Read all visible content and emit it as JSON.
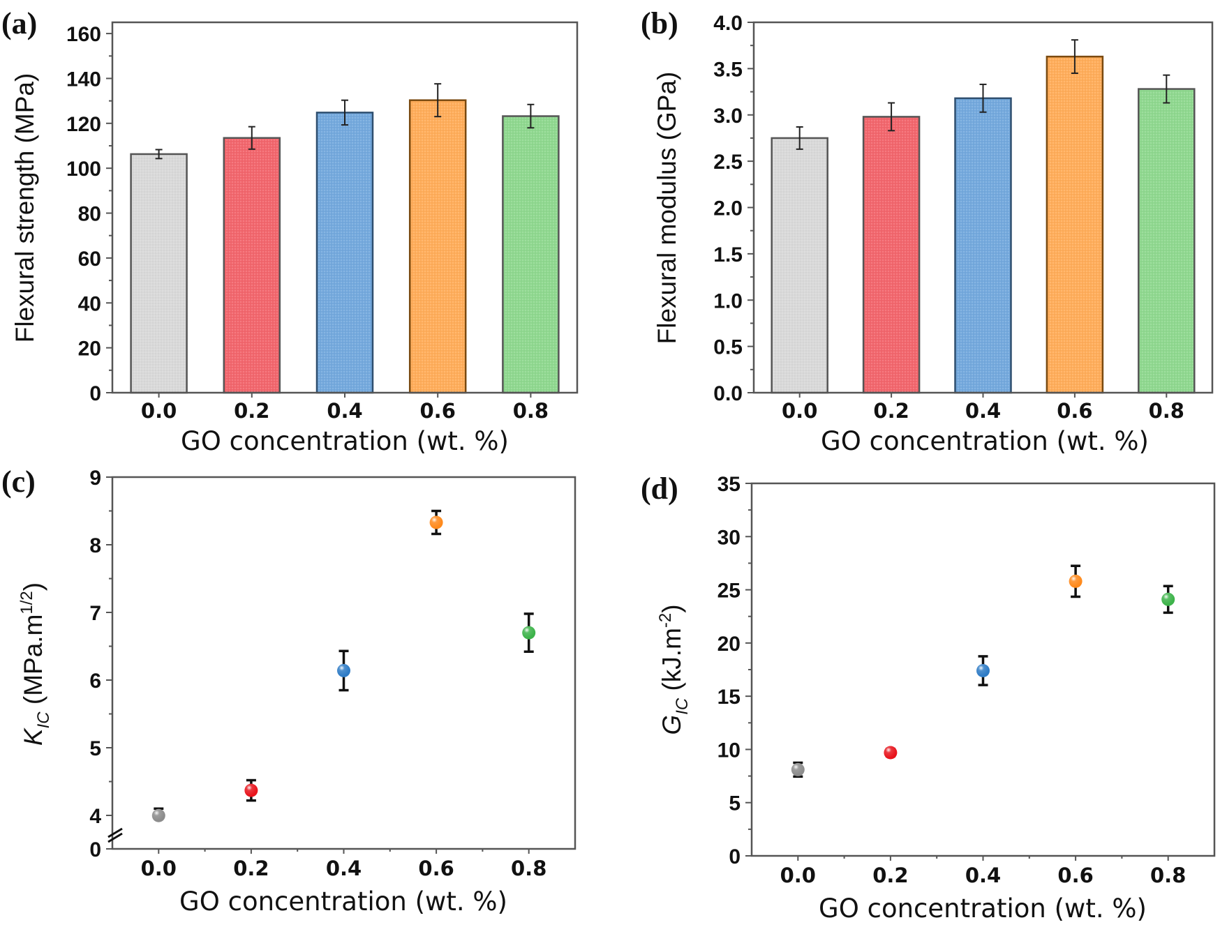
{
  "figure": {
    "panels": [
      "(a)",
      "(b)",
      "(c)",
      "(d)"
    ]
  },
  "chart_data": [
    {
      "id": "a",
      "panel_label": "(a)",
      "type": "bar",
      "title": "",
      "xlabel": "GO concentration (wt. %)",
      "ylabel": "Flexural strength (MPa)",
      "categories": [
        "0.0",
        "0.2",
        "0.4",
        "0.6",
        "0.8"
      ],
      "x": [
        0.0,
        0.2,
        0.4,
        0.6,
        0.8
      ],
      "values": [
        106.3,
        113.5,
        124.8,
        130.3,
        123.2
      ],
      "errors": [
        2.0,
        5.0,
        5.5,
        7.3,
        5.2
      ],
      "colors": [
        "#d9d9d9",
        "#f2666d",
        "#74a9dd",
        "#ffad5a",
        "#8fd88f"
      ],
      "edge_colors": [
        "#555555",
        "#555555",
        "#2f4f6f",
        "#7a4a10",
        "#555555"
      ],
      "xlim": [
        -0.1,
        0.9
      ],
      "ylim": [
        0,
        165
      ],
      "yticks": [
        0,
        20,
        40,
        60,
        80,
        100,
        120,
        140,
        160
      ],
      "ytick_labels": [
        "0",
        "20",
        "40",
        "60",
        "80",
        "100",
        "120",
        "140",
        "160"
      ],
      "grid": false,
      "legend": "none"
    },
    {
      "id": "b",
      "panel_label": "(b)",
      "type": "bar",
      "title": "",
      "xlabel": "GO concentration (wt. %)",
      "ylabel": "Flexural modulus (GPa)",
      "categories": [
        "0.0",
        "0.2",
        "0.4",
        "0.6",
        "0.8"
      ],
      "x": [
        0.0,
        0.2,
        0.4,
        0.6,
        0.8
      ],
      "values": [
        2.75,
        2.98,
        3.18,
        3.63,
        3.28
      ],
      "errors": [
        0.12,
        0.15,
        0.15,
        0.18,
        0.15
      ],
      "colors": [
        "#d9d9d9",
        "#f2666d",
        "#74a9dd",
        "#ffad5a",
        "#8fd88f"
      ],
      "edge_colors": [
        "#555555",
        "#555555",
        "#2f4f6f",
        "#7a4a10",
        "#555555"
      ],
      "xlim": [
        -0.1,
        0.9
      ],
      "ylim": [
        0,
        4.0
      ],
      "yticks": [
        0,
        0.5,
        1.0,
        1.5,
        2.0,
        2.5,
        3.0,
        3.5,
        4.0
      ],
      "ytick_labels": [
        "0.0",
        "0.5",
        "1.0",
        "1.5",
        "2.0",
        "2.5",
        "3.0",
        "3.5",
        "4.0"
      ],
      "grid": false,
      "legend": "none"
    },
    {
      "id": "c",
      "panel_label": "(c)",
      "type": "scatter",
      "title": "",
      "xlabel": "GO concentration (wt. %)",
      "ylabel_main": "K",
      "ylabel_sub": "IC",
      "ylabel_unit": " (MPa.m",
      "ylabel_sup": "1/2",
      "ylabel_close": ")",
      "x": [
        0.0,
        0.2,
        0.4,
        0.6,
        0.8
      ],
      "categories": [
        "0.0",
        "0.2",
        "0.4",
        "0.6",
        "0.8"
      ],
      "values": [
        3.98,
        4.37,
        6.14,
        8.33,
        6.7
      ],
      "errors": [
        0.12,
        0.15,
        0.29,
        0.17,
        0.28
      ],
      "colors": [
        "#8c8c8c",
        "#e8141c",
        "#2f7cc6",
        "#ff8a1c",
        "#3db34a"
      ],
      "xlim": [
        -0.1,
        0.9
      ],
      "ylim": [
        0,
        9
      ],
      "axis_break": [
        0,
        4
      ],
      "yticks": [
        0,
        4,
        5,
        6,
        7,
        8,
        9
      ],
      "ytick_labels": [
        "0",
        "4",
        "5",
        "6",
        "7",
        "8",
        "9"
      ],
      "grid": false,
      "legend": "none"
    },
    {
      "id": "d",
      "panel_label": "(d)",
      "type": "scatter",
      "title": "",
      "xlabel": "GO concentration (wt. %)",
      "ylabel_main": "G",
      "ylabel_sub": "IC",
      "ylabel_unit": " (kJ.m",
      "ylabel_sup": "-2",
      "ylabel_close": ")",
      "x": [
        0.0,
        0.2,
        0.4,
        0.6,
        0.8
      ],
      "categories": [
        "0.0",
        "0.2",
        "0.4",
        "0.6",
        "0.8"
      ],
      "values": [
        8.1,
        9.7,
        17.4,
        25.8,
        24.1
      ],
      "errors": [
        0.65,
        0.35,
        1.35,
        1.45,
        1.25
      ],
      "colors": [
        "#8c8c8c",
        "#e8141c",
        "#2f7cc6",
        "#ff8a1c",
        "#3db34a"
      ],
      "xlim": [
        -0.1,
        0.9
      ],
      "ylim": [
        0,
        35
      ],
      "yticks": [
        0,
        5,
        10,
        15,
        20,
        25,
        30,
        35
      ],
      "ytick_labels": [
        "0",
        "5",
        "10",
        "15",
        "20",
        "25",
        "30",
        "35"
      ],
      "grid": false,
      "legend": "none"
    }
  ]
}
